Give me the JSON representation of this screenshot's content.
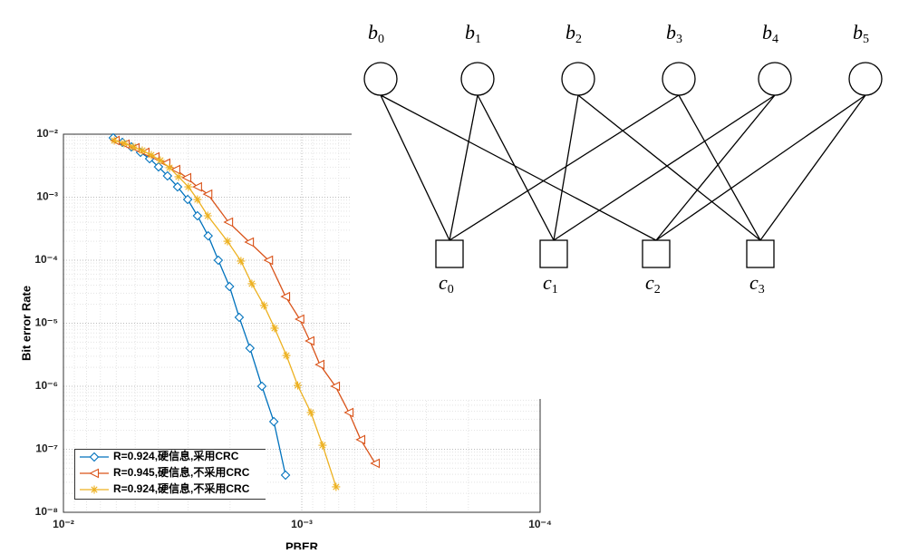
{
  "chart_data": {
    "type": "line",
    "x_label": "PBER",
    "y_label": "Bit error Rate",
    "x_log": true,
    "y_log": true,
    "grid": true,
    "minor_grid": true,
    "legend": "lower-left",
    "xlim": [
      0.01,
      0.0001
    ],
    "xticks": [
      {
        "value": 0.01,
        "label": "10⁻²"
      },
      {
        "value": 0.001,
        "label": "10⁻³"
      },
      {
        "value": 0.0001,
        "label": "10⁻⁴"
      }
    ],
    "ylim": [
      1e-08,
      0.01
    ],
    "yticks": [
      {
        "value": 1e-08,
        "label": "10⁻⁸"
      },
      {
        "value": 1e-07,
        "label": "10⁻⁷"
      },
      {
        "value": 1e-06,
        "label": "10⁻⁶"
      },
      {
        "value": 1e-05,
        "label": "10⁻⁵"
      },
      {
        "value": 0.0001,
        "label": "10⁻⁴"
      },
      {
        "value": 0.001,
        "label": "10⁻³"
      },
      {
        "value": 0.01,
        "label": "10⁻²"
      }
    ],
    "series": [
      {
        "name": "R=0.924,硬信息,采用CRC",
        "color": "#0072bd",
        "marker": "diamond",
        "x": [
          0.00618,
          0.00566,
          0.00519,
          0.00475,
          0.00435,
          0.00399,
          0.00366,
          0.00332,
          0.00301,
          0.00274,
          0.00247,
          0.00224,
          0.00201,
          0.00183,
          0.00165,
          0.00147,
          0.00131,
          0.00117
        ],
        "values": [
          0.00875,
          0.00743,
          0.00629,
          0.00516,
          0.00409,
          0.00303,
          0.00218,
          0.00146,
          0.00092,
          0.000507,
          0.000244,
          0.0001,
          3.83e-05,
          1.24e-05,
          4.02e-06,
          1e-06,
          2.75e-07,
          3.89e-08
        ]
      },
      {
        "name": "R=0.945,硬信息,不采用CRC",
        "color": "#d95319",
        "marker": "triangle-left",
        "x": [
          0.00607,
          0.00551,
          0.00501,
          0.00455,
          0.00413,
          0.00372,
          0.00338,
          0.00304,
          0.00274,
          0.00248,
          0.00203,
          0.00166,
          0.00138,
          0.00117,
          0.00102,
          0.000925,
          0.00084,
          0.000723,
          0.000634,
          0.000566,
          0.000492
        ],
        "values": [
          0.00793,
          0.00695,
          0.00608,
          0.00516,
          0.00437,
          0.00347,
          0.00275,
          0.00204,
          0.00146,
          0.00112,
          0.000402,
          0.000194,
          0.0001,
          2.65e-05,
          1.16e-05,
          5.24e-06,
          2.21e-06,
          1e-06,
          3.83e-07,
          1.42e-07,
          5.98e-08
        ]
      },
      {
        "name": "R=0.924,硬信息,不采用CRC",
        "color": "#edb120",
        "marker": "asterisk",
        "x": [
          0.00612,
          0.00556,
          0.0051,
          0.00467,
          0.00428,
          0.00392,
          0.00359,
          0.00329,
          0.00299,
          0.00274,
          0.00248,
          0.00205,
          0.0018,
          0.00162,
          0.00144,
          0.0013,
          0.00116,
          0.00104,
          0.000916,
          0.000818,
          0.000718
        ],
        "values": [
          0.00793,
          0.00718,
          0.00629,
          0.00551,
          0.00467,
          0.00383,
          0.00294,
          0.00211,
          0.00146,
          0.00092,
          0.000507,
          0.0002,
          9.7e-05,
          4.23e-05,
          1.91e-05,
          8.34e-06,
          3.08e-06,
          1.03e-06,
          3.83e-07,
          1.16e-07,
          2.53e-08
        ]
      }
    ]
  },
  "diagram": {
    "variable_nodes": [
      {
        "symbol": "b",
        "subscript": "0"
      },
      {
        "symbol": "b",
        "subscript": "1"
      },
      {
        "symbol": "b",
        "subscript": "2"
      },
      {
        "symbol": "b",
        "subscript": "3"
      },
      {
        "symbol": "b",
        "subscript": "4"
      },
      {
        "symbol": "b",
        "subscript": "5"
      }
    ],
    "check_nodes": [
      {
        "symbol": "c",
        "subscript": "0"
      },
      {
        "symbol": "c",
        "subscript": "1"
      },
      {
        "symbol": "c",
        "subscript": "2"
      },
      {
        "symbol": "c",
        "subscript": "3"
      }
    ]
  }
}
